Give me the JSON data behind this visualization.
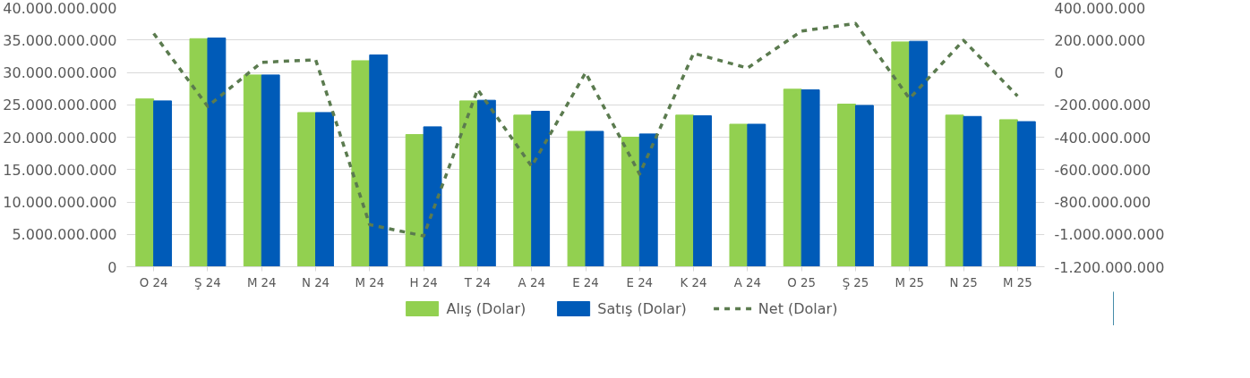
{
  "chart_data": {
    "type": "bar",
    "categories": [
      "O 24",
      "Ş 24",
      "M 24",
      "N 24",
      "M 24",
      "H 24",
      "T 24",
      "A 24",
      "E 24",
      "E 24",
      "K 24",
      "A 24",
      "O 25",
      "Ş 25",
      "M 25",
      "N 25",
      "M 25"
    ],
    "series": [
      {
        "name": "Alış (Dolar)",
        "color": "#92d050",
        "values": [
          25900000000,
          35200000000,
          29600000000,
          23800000000,
          31800000000,
          20400000000,
          25600000000,
          23400000000,
          20900000000,
          20000000000,
          23400000000,
          22000000000,
          27400000000,
          25100000000,
          34700000000,
          23400000000,
          22700000000
        ]
      },
      {
        "name": "Satış (Dolar)",
        "color": "#005bb8",
        "values": [
          25600000000,
          35300000000,
          29600000000,
          23800000000,
          32700000000,
          21600000000,
          25700000000,
          24000000000,
          20900000000,
          20500000000,
          23300000000,
          22000000000,
          27300000000,
          24900000000,
          34800000000,
          23200000000,
          22400000000
        ]
      },
      {
        "name": "Net (Dolar)",
        "type": "line",
        "axis": "y2",
        "line_style": "dashed",
        "color": "#5b7b4f",
        "values": [
          240000000,
          -210000000,
          62000000,
          78000000,
          -940000000,
          -1010000000,
          -106000000,
          -580000000,
          -2000000,
          -628000000,
          118000000,
          27000000,
          255000000,
          302000000,
          -162000000,
          198000000,
          -146000000
        ]
      }
    ],
    "ylim": [
      0,
      40000000000
    ],
    "yticks": [
      0,
      {
        "value": 5000000000,
        "label": "5.000.000.000"
      },
      {
        "value": 10000000000,
        "label": "10.000.000.000"
      },
      {
        "value": 15000000000,
        "label": "15.000.000.000"
      },
      {
        "value": 20000000000,
        "label": "20.000.000.000"
      },
      {
        "value": 25000000000,
        "label": "25.000.000.000"
      },
      {
        "value": 30000000000,
        "label": "30.000.000.000"
      },
      {
        "value": 35000000000,
        "label": "35.000.000.000"
      },
      {
        "value": 40000000000,
        "label": "40.000.000.000"
      }
    ],
    "y2lim": [
      -1200000000,
      400000000
    ],
    "y2ticks": [
      {
        "value": -1200000000,
        "label": "-1.200.000.000"
      },
      {
        "value": -1000000000,
        "label": "-1.000.000.000"
      },
      {
        "value": -800000000,
        "label": "-800.000.000"
      },
      {
        "value": -600000000,
        "label": "-600.000.000"
      },
      {
        "value": -400000000,
        "label": "-400.000.000"
      },
      {
        "value": -200000000,
        "label": "-200.000.000"
      },
      0,
      {
        "value": 200000000,
        "label": "200.000.000"
      },
      {
        "value": 400000000,
        "label": "400.000.000"
      }
    ],
    "grid": "y",
    "legend": "bottom"
  }
}
